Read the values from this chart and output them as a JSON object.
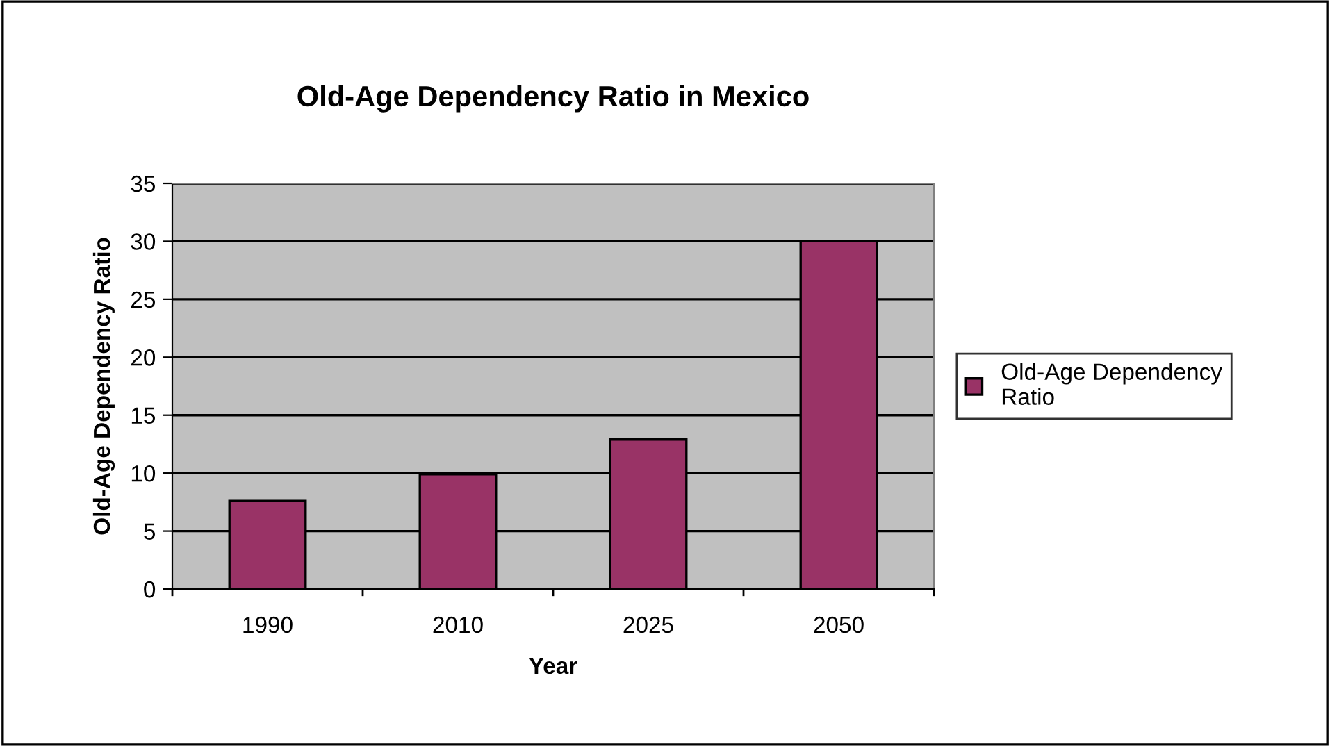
{
  "chart_data": {
    "type": "bar",
    "title": "Old-Age Dependency Ratio in Mexico",
    "xlabel": "Year",
    "ylabel": "Old-Age Dependency Ratio",
    "categories": [
      "1990",
      "2010",
      "2025",
      "2050"
    ],
    "series": [
      {
        "name": "Old-Age Dependency Ratio",
        "color": "#993366",
        "values": [
          7.6,
          9.9,
          12.9,
          30
        ]
      }
    ],
    "ylim": [
      0,
      35
    ],
    "yticks": [
      0,
      5,
      10,
      15,
      20,
      25,
      30,
      35
    ],
    "grid": "y",
    "legend": "right"
  }
}
